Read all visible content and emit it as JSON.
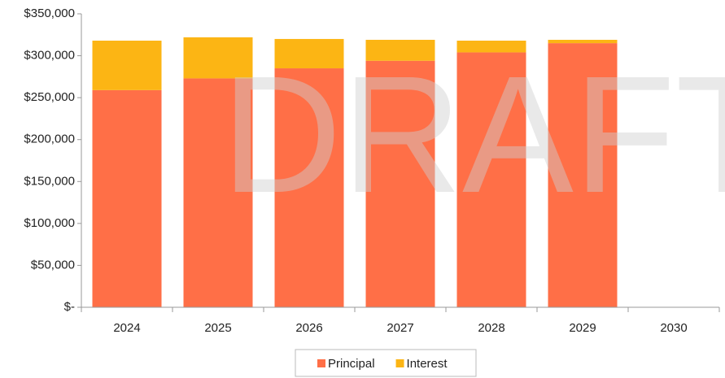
{
  "chart_data": {
    "type": "stacked_bar",
    "watermark": "DRAFT",
    "categories": [
      "2024",
      "2025",
      "2026",
      "2027",
      "2028",
      "2029",
      "2030"
    ],
    "series": [
      {
        "name": "Principal",
        "color": "#ff6f47",
        "values": [
          259000,
          273000,
          285000,
          294000,
          304000,
          315000,
          null
        ]
      },
      {
        "name": "Interest",
        "color": "#fcb514",
        "values": [
          59000,
          49000,
          35000,
          25000,
          14000,
          4000,
          null
        ]
      }
    ],
    "ylim": [
      0,
      350000
    ],
    "yticks": [
      {
        "value": 0,
        "label": "$-"
      },
      {
        "value": 50000,
        "label": "$50,000"
      },
      {
        "value": 100000,
        "label": "$100,000"
      },
      {
        "value": 150000,
        "label": "$150,000"
      },
      {
        "value": 200000,
        "label": "$200,000"
      },
      {
        "value": 250000,
        "label": "$250,000"
      },
      {
        "value": 300000,
        "label": "$300,000"
      },
      {
        "value": 350000,
        "label": "$350,000"
      }
    ],
    "legend": "bottom"
  }
}
